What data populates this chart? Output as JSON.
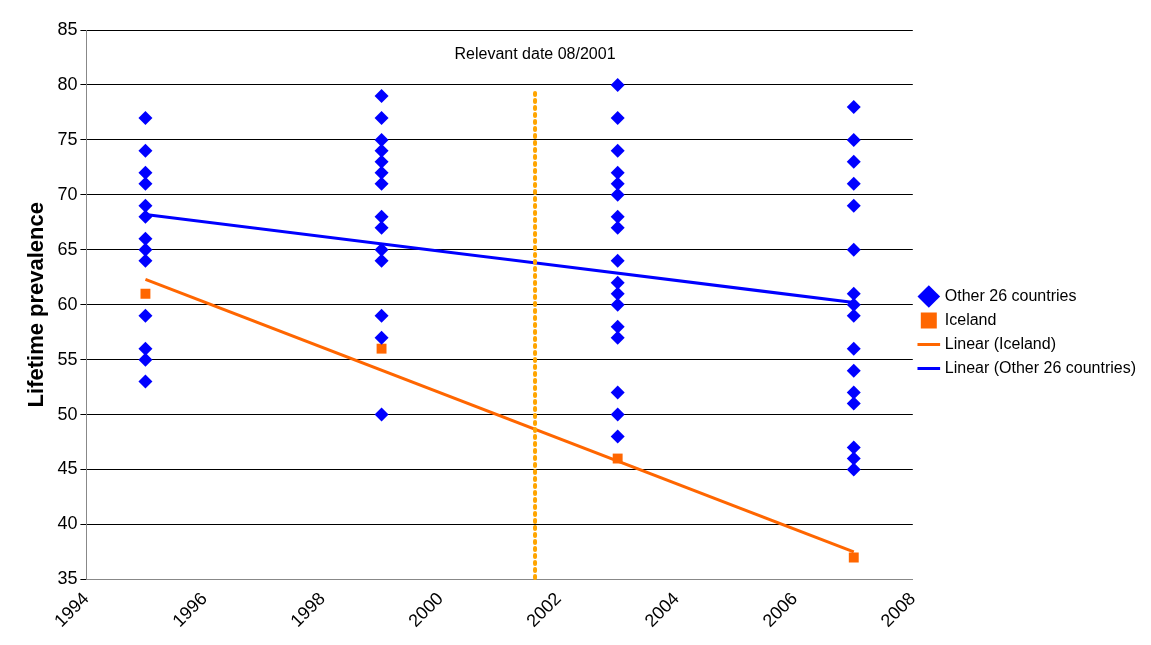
{
  "chart_data": {
    "type": "scatter",
    "ylabel": "Lifetime prevalence",
    "xlim": [
      1994,
      2008
    ],
    "xticks": [
      1994,
      1996,
      1998,
      2000,
      2002,
      2004,
      2006,
      2008
    ],
    "ylim": [
      35,
      85
    ],
    "yticks": [
      35,
      40,
      45,
      50,
      55,
      60,
      65,
      70,
      75,
      80,
      85
    ],
    "grid": "y",
    "legend": "right",
    "ref_lines": [
      {
        "axis": "x",
        "value": 2001.6,
        "label": "Relevant date 08/2001",
        "color": "#ffa500",
        "line_style": "dotted"
      }
    ],
    "series": [
      {
        "name": "Other 26 countries",
        "type": "scatter",
        "marker": "diamond",
        "color": "#0000ff",
        "x": [
          1995,
          1995,
          1995,
          1995,
          1995,
          1995,
          1995,
          1995,
          1995,
          1995,
          1995,
          1995,
          1995,
          1999,
          1999,
          1999,
          1999,
          1999,
          1999,
          1999,
          1999,
          1999,
          1999,
          1999,
          1999,
          1999,
          1999,
          2003,
          2003,
          2003,
          2003,
          2003,
          2003,
          2003,
          2003,
          2003,
          2003,
          2003,
          2003,
          2003,
          2003,
          2003,
          2003,
          2003,
          2007,
          2007,
          2007,
          2007,
          2007,
          2007,
          2007,
          2007,
          2007,
          2007,
          2007,
          2007,
          2007,
          2007,
          2007,
          2007
        ],
        "values": [
          77,
          74,
          72,
          71,
          69,
          68,
          66,
          65,
          64,
          59,
          56,
          55,
          53,
          79,
          77,
          75,
          74,
          73,
          72,
          71,
          68,
          67,
          65,
          64,
          59,
          57,
          50,
          80,
          77,
          74,
          72,
          71,
          70,
          68,
          67,
          64,
          62,
          61,
          60,
          58,
          57,
          52,
          50,
          48,
          78,
          75,
          73,
          71,
          69,
          65,
          61,
          60,
          59,
          56,
          54,
          52,
          51,
          47,
          46,
          45
        ]
      },
      {
        "name": "Iceland",
        "type": "scatter",
        "marker": "square",
        "color": "#ff6600",
        "x": [
          1995,
          1999,
          2003,
          2007
        ],
        "values": [
          61,
          56,
          46,
          37
        ]
      },
      {
        "name": "Linear (Iceland)",
        "type": "line",
        "marker": "none",
        "color": "#ff6600",
        "x": [
          1995,
          2007
        ],
        "values": [
          62.3,
          37.5
        ]
      },
      {
        "name": "Linear (Other 26 countries)",
        "type": "line",
        "marker": "none",
        "color": "#0000ff",
        "x": [
          1995,
          2007
        ],
        "values": [
          68.2,
          60.2
        ]
      }
    ]
  }
}
